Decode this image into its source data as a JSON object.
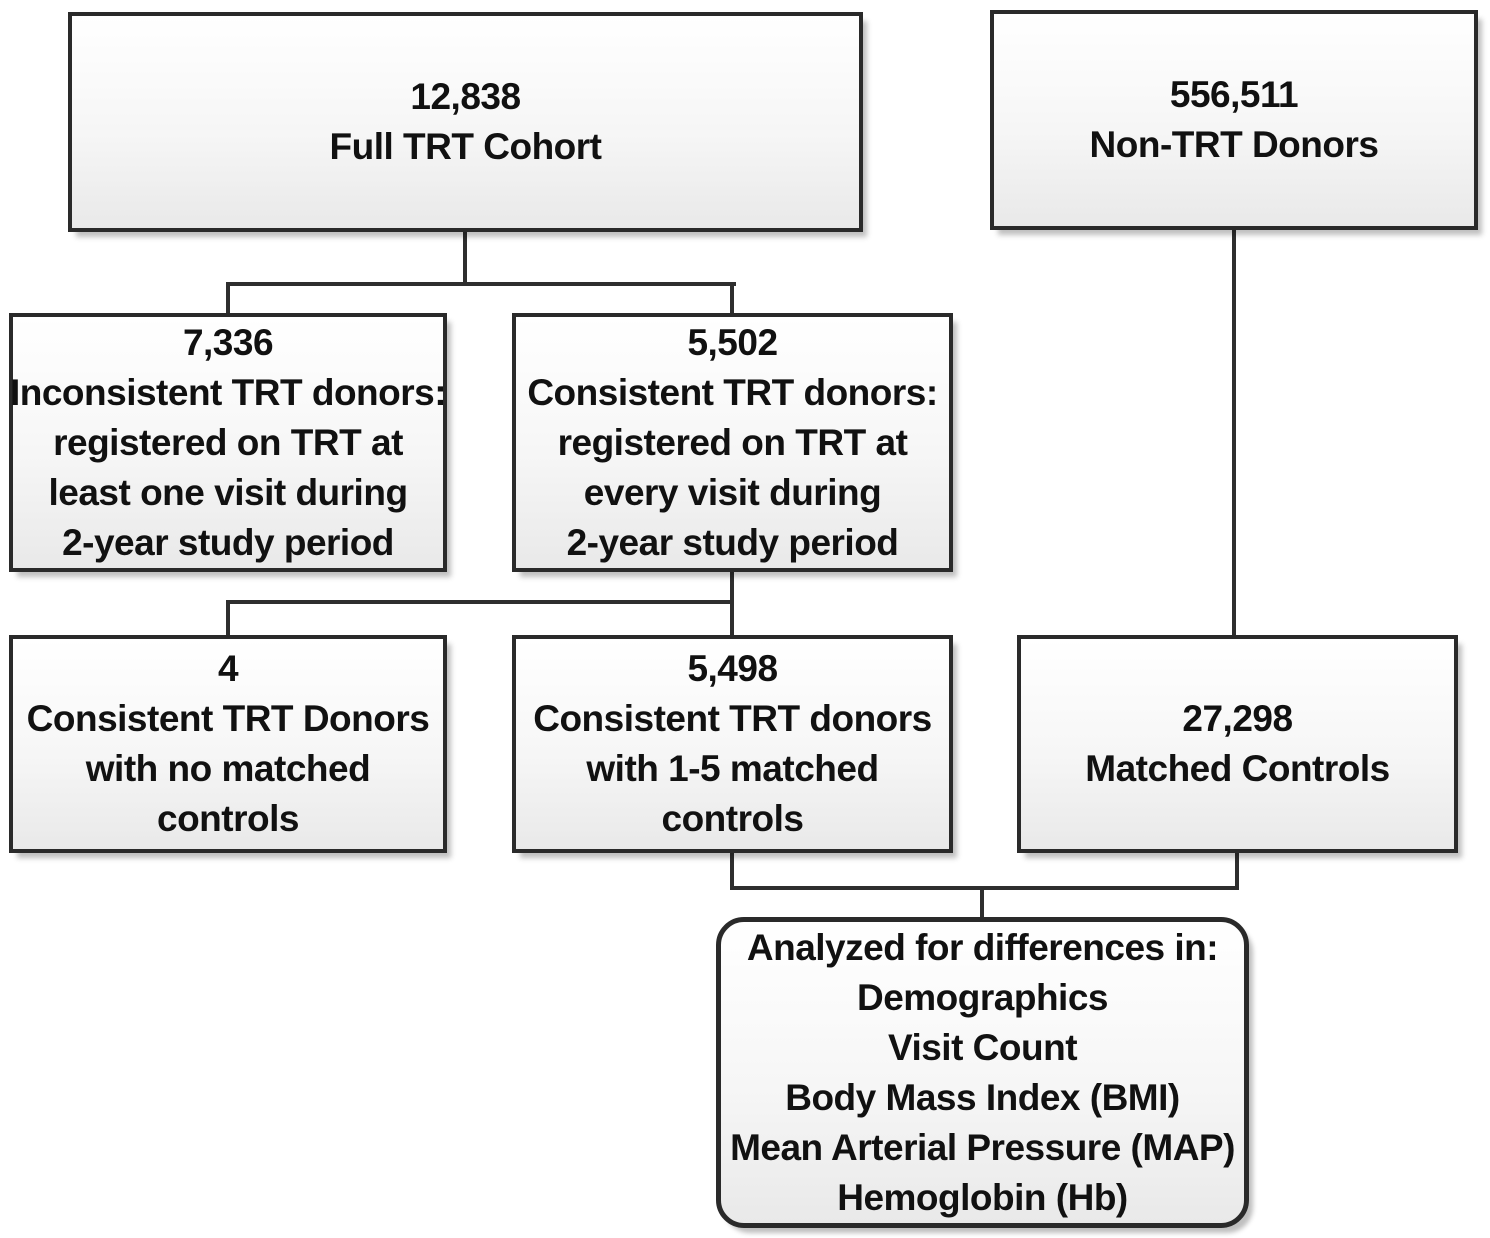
{
  "colors": {
    "background": "#ffffff",
    "box_border": "#2a2a2a",
    "box_fill_top": "#ffffff",
    "box_fill_bottom": "#e9e9e9",
    "connector": "#2e2e2e",
    "text": "#111111",
    "shadow": "rgba(0,0,0,0.25)"
  },
  "diagram": {
    "boxes": {
      "full_trt_cohort": {
        "value": "12,838",
        "lines": [
          "Full TRT Cohort"
        ]
      },
      "non_trt_donors": {
        "value": "556,511",
        "lines": [
          "Non-TRT Donors"
        ]
      },
      "inconsistent_trt_donors": {
        "value": "7,336",
        "lines": [
          "Inconsistent TRT donors:",
          "registered on TRT at",
          "least one visit during",
          "2-year study period"
        ]
      },
      "consistent_trt_donors": {
        "value": "5,502",
        "lines": [
          "Consistent TRT donors:",
          "registered on TRT at",
          "every visit during",
          "2-year study period"
        ]
      },
      "no_matched_controls": {
        "value": "4",
        "lines": [
          "Consistent TRT Donors",
          "with no matched",
          "controls"
        ]
      },
      "matched_1_5_controls": {
        "value": "5,498",
        "lines": [
          "Consistent TRT donors",
          "with 1-5 matched",
          "controls"
        ]
      },
      "matched_controls": {
        "value": "27,298",
        "lines": [
          "Matched Controls"
        ]
      },
      "analyzed_for_differences": {
        "lines": [
          "Analyzed for differences in:",
          "Demographics",
          "Visit Count",
          "Body Mass Index (BMI)",
          "Mean Arterial Pressure (MAP)",
          "Hemoglobin (Hb)"
        ]
      }
    }
  }
}
